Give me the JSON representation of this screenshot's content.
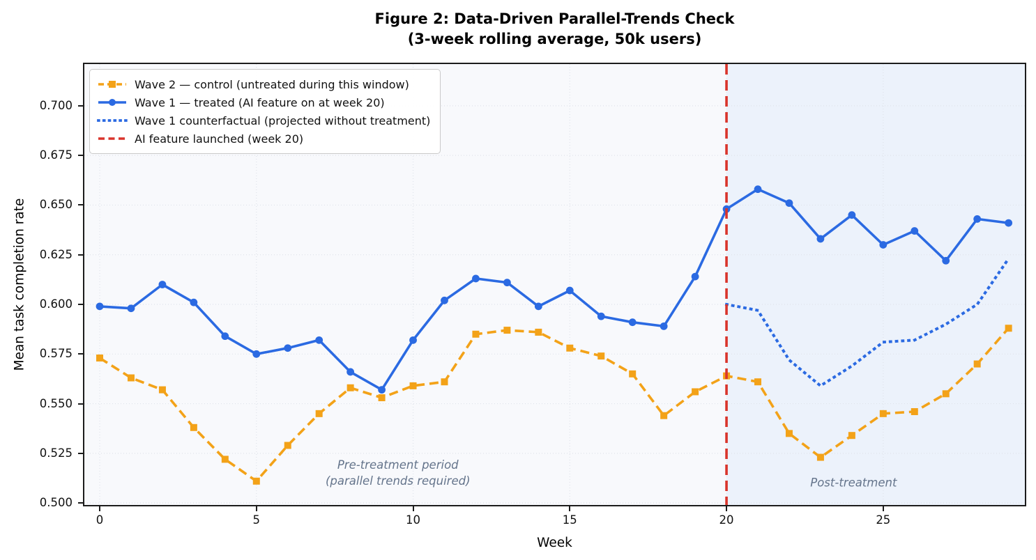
{
  "chart_data": {
    "type": "line",
    "title": "Figure 2: Data-Driven Parallel-Trends Check (3-week rolling average, 50k users)",
    "title_lines": [
      "Figure 2: Data-Driven Parallel-Trends Check",
      "(3-week rolling average, 50k users)"
    ],
    "xlabel": "Week",
    "ylabel": "Mean task completion rate",
    "xlim": [
      -0.49,
      29.52
    ],
    "ylim": [
      0.499,
      0.721
    ],
    "xticks": [
      0,
      5,
      10,
      15,
      20,
      25
    ],
    "xtick_labels": [
      "0",
      "5",
      "10",
      "15",
      "20",
      "25"
    ],
    "yticks": [
      0.5,
      0.525,
      0.55,
      0.575,
      0.6,
      0.625,
      0.65,
      0.675,
      0.7
    ],
    "ytick_labels": [
      "0.500",
      "0.525",
      "0.550",
      "0.575",
      "0.600",
      "0.625",
      "0.650",
      "0.675",
      "0.700"
    ],
    "grid": true,
    "x": [
      0,
      1,
      2,
      3,
      4,
      5,
      6,
      7,
      8,
      9,
      10,
      11,
      12,
      13,
      14,
      15,
      16,
      17,
      18,
      19,
      20,
      21,
      22,
      23,
      24,
      25,
      26,
      27,
      28,
      29
    ],
    "series": [
      {
        "name": "Wave 2 — control (untreated during this window)",
        "color": "#f3a218",
        "style": "dashed",
        "marker": "square",
        "x_start": 0,
        "values": [
          0.573,
          0.563,
          0.557,
          0.538,
          0.522,
          0.511,
          0.529,
          0.545,
          0.558,
          0.553,
          0.559,
          0.561,
          0.585,
          0.587,
          0.586,
          0.578,
          0.574,
          0.565,
          0.544,
          0.556,
          0.564,
          0.561,
          0.535,
          0.523,
          0.534,
          0.545,
          0.546,
          0.555,
          0.57,
          0.588
        ]
      },
      {
        "name": "Wave 1 — treated (AI feature on at week 20)",
        "color": "#2b6ae2",
        "style": "solid",
        "marker": "circle",
        "x_start": 0,
        "values": [
          0.599,
          0.598,
          0.61,
          0.601,
          0.584,
          0.575,
          0.578,
          0.582,
          0.566,
          0.557,
          0.582,
          0.602,
          0.613,
          0.611,
          0.599,
          0.607,
          0.594,
          0.591,
          0.589,
          0.614,
          0.648,
          0.658,
          0.651,
          0.633,
          0.645,
          0.63,
          0.637,
          0.622,
          0.643,
          0.641
        ]
      },
      {
        "name": "Wave 1 counterfactual (projected without treatment)",
        "color": "#2b6ae2",
        "style": "dotted",
        "marker": "none",
        "x_start": 20,
        "values": [
          0.6,
          0.597,
          0.572,
          0.559,
          0.569,
          0.581,
          0.582,
          0.59,
          0.6,
          0.623
        ]
      }
    ],
    "vline": {
      "x": 20,
      "color": "#d9342b",
      "style": "dashed",
      "label": "AI feature launched (week 20)"
    },
    "shaded_region": {
      "from": 20,
      "to": 29.52,
      "color": "#ecf2fb"
    },
    "annotations": [
      {
        "lines": [
          "Pre-treatment period",
          "(parallel trends required)"
        ],
        "x": 9.56,
        "y": 0.5145
      },
      {
        "lines": [
          "Post-treatment"
        ],
        "x": 24.1,
        "y": 0.5095
      }
    ],
    "legend": [
      {
        "label": "Wave 2 — control (untreated during this window)",
        "color": "#f3a218",
        "style": "dashed",
        "marker": "square"
      },
      {
        "label": "Wave 1 — treated (AI feature on at week 20)",
        "color": "#2b6ae2",
        "style": "solid",
        "marker": "circle"
      },
      {
        "label": "Wave 1 counterfactual (projected without treatment)",
        "color": "#2b6ae2",
        "style": "dotted",
        "marker": "none"
      },
      {
        "label": "AI feature launched (week 20)",
        "color": "#d9342b",
        "style": "vline-dashed",
        "marker": "none"
      }
    ],
    "legend_position": "upper left",
    "colors": {
      "background_pre": "#f8f9fc",
      "background_post": "#ecf2fb",
      "grid": "#dfe3ea",
      "spine": "#1c1c1c",
      "annotation_text": "#64748b"
    }
  }
}
